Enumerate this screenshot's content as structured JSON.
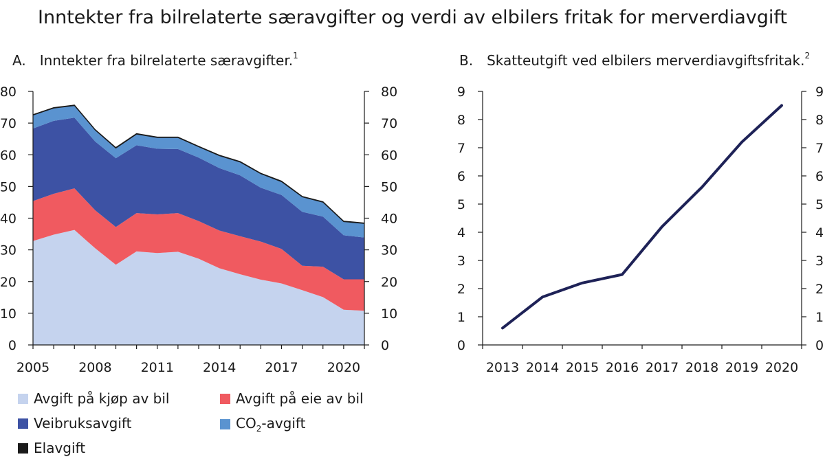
{
  "title": "Inntekter fra bilrelaterte særavgifter og verdi av elbilers fritak for merverdiavgift",
  "panels": {
    "a": {
      "letter": "A.",
      "title": "Inntekter fra bilrelaterte særavgifter.",
      "footnote": "1"
    },
    "b": {
      "letter": "B.",
      "title": "Skatteutgift ved elbilers merverdiavgiftsfritak.",
      "footnote": "2"
    }
  },
  "legend": [
    {
      "key": "kjop",
      "label": "Avgift på kjøp av bil",
      "color": "#c5d3ee"
    },
    {
      "key": "eie",
      "label": "Avgift på eie av bil",
      "color": "#f05a60"
    },
    {
      "key": "vei",
      "label": "Veibruksavgift",
      "color": "#3d52a4"
    },
    {
      "key": "co2",
      "label_prefix": "CO",
      "label_sub": "2",
      "label_suffix": "-avgift",
      "color": "#5a93d0"
    },
    {
      "key": "el",
      "label": "Elavgift",
      "color": "#1a1a1a"
    }
  ],
  "chart_data": [
    {
      "type": "area",
      "stacked": true,
      "title": "Inntekter fra bilrelaterte særavgifter.",
      "x": [
        2005,
        2006,
        2007,
        2008,
        2009,
        2010,
        2011,
        2012,
        2013,
        2014,
        2015,
        2016,
        2017,
        2018,
        2019,
        2020,
        2021
      ],
      "x_tick_labels": [
        "2005",
        "2008",
        "2011",
        "2014",
        "2017",
        "2020"
      ],
      "x_tick_values": [
        2005,
        2008,
        2011,
        2014,
        2017,
        2020
      ],
      "ylim": [
        0,
        80
      ],
      "y_ticks": [
        0,
        10,
        20,
        30,
        40,
        50,
        60,
        70,
        80
      ],
      "series": [
        {
          "key": "kjop",
          "name": "Avgift på kjøp av bil",
          "color": "#c5d3ee",
          "values": [
            32.8,
            34.8,
            36.3,
            30.5,
            25.3,
            29.5,
            29.0,
            29.4,
            27.2,
            24.2,
            22.3,
            20.6,
            19.4,
            17.3,
            15.1,
            11.1,
            10.8
          ]
        },
        {
          "key": "eie",
          "name": "Avgift på eie av bil",
          "color": "#f05a60",
          "values": [
            12.6,
            12.9,
            13.1,
            12.0,
            11.9,
            12.1,
            12.2,
            12.2,
            11.9,
            11.9,
            12.0,
            12.0,
            10.9,
            7.7,
            9.6,
            9.6,
            9.9
          ]
        },
        {
          "key": "vei",
          "name": "Veibruksavgift",
          "color": "#3d52a4",
          "values": [
            22.9,
            23.0,
            22.3,
            21.7,
            21.7,
            21.4,
            20.7,
            20.2,
            20.0,
            19.7,
            19.2,
            17.0,
            17.0,
            17.0,
            15.8,
            13.9,
            13.2
          ]
        },
        {
          "key": "co2",
          "name": "CO2-avgift",
          "color": "#5a93d0",
          "values": [
            4.2,
            4.0,
            3.8,
            3.6,
            3.2,
            3.5,
            3.5,
            3.6,
            3.4,
            3.9,
            4.2,
            4.4,
            4.2,
            4.7,
            4.5,
            4.3,
            4.4
          ]
        },
        {
          "key": "el",
          "name": "Elavgift",
          "color": "#1a1a1a",
          "values": [
            0.2,
            0.2,
            0.2,
            0.2,
            0.2,
            0.2,
            0.2,
            0.2,
            0.2,
            0.2,
            0.2,
            0.2,
            0.2,
            0.2,
            0.2,
            0.2,
            0.2
          ]
        }
      ]
    },
    {
      "type": "line",
      "title": "Skatteutgift ved elbilers merverdiavgiftsfritak.",
      "x": [
        "2013",
        "2014",
        "2015",
        "2016",
        "2017",
        "2018",
        "2019",
        "2020"
      ],
      "ylim": [
        0,
        9
      ],
      "y_ticks": [
        0,
        1,
        2,
        3,
        4,
        5,
        6,
        7,
        8,
        9
      ],
      "series": [
        {
          "name": "Skatteutgift",
          "color": "#1e2257",
          "values": [
            0.6,
            1.7,
            2.2,
            2.5,
            4.2,
            5.6,
            7.2,
            8.5
          ]
        }
      ]
    }
  ]
}
